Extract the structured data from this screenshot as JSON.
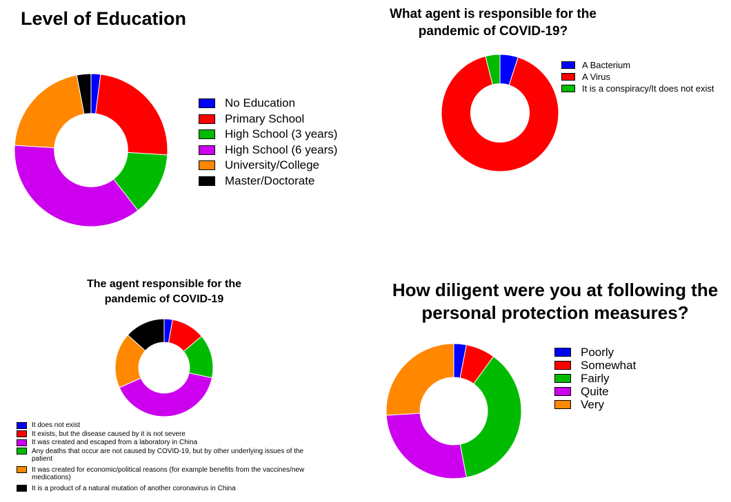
{
  "chart_data": [
    {
      "id": "education",
      "type": "pie",
      "title_lines": [
        "Level of Education"
      ],
      "categories": [
        "No Education",
        "Primary School",
        "High School (3 years)",
        "High School (6 years)",
        "University/College",
        "Master/Doctorate"
      ],
      "values": [
        2.0,
        24.0,
        13.5,
        36.5,
        21.0,
        3.0
      ],
      "colors": [
        "#0000ff",
        "#ff0000",
        "#00bb00",
        "#cc00ee",
        "#ff8800",
        "#000000"
      ]
    },
    {
      "id": "agent",
      "type": "pie",
      "title_lines": [
        "What agent is responsible for the",
        "pandemic of COVID-19?"
      ],
      "categories": [
        "A Bacterium",
        "A Virus",
        "It is a conspiracy/It does not exist"
      ],
      "values": [
        5.0,
        91.0,
        4.0
      ],
      "colors": [
        "#0000ff",
        "#ff0000",
        "#00bb00"
      ]
    },
    {
      "id": "agent_origin",
      "type": "pie",
      "title_lines": [
        "The agent responsible for the",
        "pandemic of COVID-19"
      ],
      "categories": [
        "It does not exist",
        "It exists, but the disease caused by it is not severe",
        "It was created and escaped from a laboratory in China",
        "Any deaths that occur are not caused by COVID-19, but by other underlying issues of the patient",
        "It was created for economic/political reasons (for example benefits from the vaccines/new medications)",
        "It is a product of a natural mutation of another coronavirus in China"
      ],
      "legend_lines": [
        [
          "It does not exist"
        ],
        [
          "It exists, but the disease caused by it is not severe"
        ],
        [
          "It was created and escaped from a laboratory in China"
        ],
        [
          "Any deaths that occur are not caused by COVID-19, but by other underlying issues of the",
          "patient"
        ],
        [
          "It was created for economic/political reasons (for example benefits from the vaccines/new",
          "medications)"
        ],
        [
          "It is a product of a natural mutation of another coronavirus in China"
        ]
      ],
      "values": [
        2.5,
        10.0,
        36.0,
        13.0,
        16.5,
        12.0
      ],
      "slice_order": [
        0,
        1,
        3,
        2,
        4,
        5
      ],
      "colors": [
        "#0000ff",
        "#ff0000",
        "#cc00ee",
        "#00bb00",
        "#ff8800",
        "#000000"
      ]
    },
    {
      "id": "diligence",
      "type": "pie",
      "title_lines": [
        "How diligent were you at following the",
        "personal protection measures?"
      ],
      "categories": [
        "Poorly",
        "Somewhat",
        "Fairly",
        "Quite",
        "Very"
      ],
      "values": [
        3.0,
        7.0,
        37.0,
        27.0,
        26.0
      ],
      "colors": [
        "#0000ff",
        "#ff0000",
        "#00bb00",
        "#cc00ee",
        "#ff8800"
      ]
    }
  ]
}
